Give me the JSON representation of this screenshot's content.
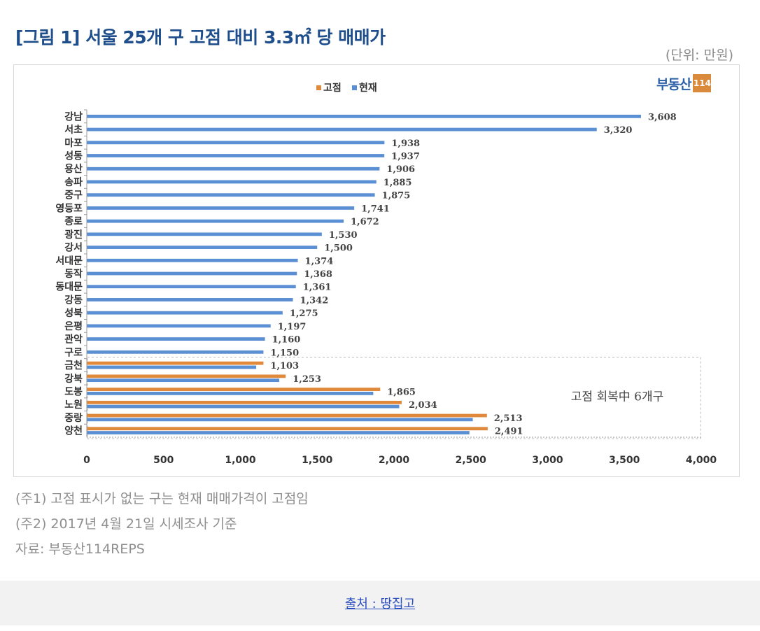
{
  "page": {
    "title": "[그림 1] 서울 25개 구 고점 대비 3.3㎡ 당 매매가",
    "unit": "(단위: 만원)",
    "logo": {
      "text": "부동산",
      "box": "114"
    },
    "notes": [
      "(주1) 고점 표시가 없는 구는 현재 매매가격이 고점임",
      "(주2) 2017년 4월 21일 시세조사 기준",
      "자료: 부동산114REPS"
    ],
    "source_link": "출처 : 땅집고"
  },
  "colors": {
    "peak": "#e0893a",
    "current": "#5b8fd4",
    "axis": "#999999",
    "text": "#333333"
  },
  "chart_data": {
    "type": "bar",
    "orientation": "horizontal",
    "legend": {
      "position": "top",
      "items": [
        "고점",
        "현재"
      ]
    },
    "xlim": [
      0,
      4000
    ],
    "xticks": [
      0,
      500,
      1000,
      1500,
      2000,
      2500,
      3000,
      3500,
      4000
    ],
    "xtick_labels": [
      "0",
      "500",
      "1,000",
      "1,500",
      "2,000",
      "2,500",
      "3,000",
      "3,500",
      "4,000"
    ],
    "categories": [
      "강남",
      "서초",
      "마포",
      "성동",
      "용산",
      "송파",
      "중구",
      "영등포",
      "종로",
      "광진",
      "강서",
      "서대문",
      "동작",
      "동대문",
      "강동",
      "성북",
      "은평",
      "관악",
      "구로",
      "금천",
      "강북",
      "도봉",
      "노원",
      "중랑",
      "양천"
    ],
    "series": [
      {
        "name": "고점",
        "values": [
          null,
          null,
          null,
          null,
          null,
          null,
          null,
          null,
          null,
          null,
          null,
          null,
          null,
          null,
          null,
          null,
          null,
          null,
          null,
          1150,
          1295,
          1910,
          2050,
          2605,
          2610
        ]
      },
      {
        "name": "현재",
        "values": [
          3608,
          3320,
          1938,
          1937,
          1906,
          1885,
          1875,
          1741,
          1672,
          1530,
          1500,
          1374,
          1368,
          1361,
          1342,
          1275,
          1197,
          1160,
          1150,
          1103,
          1253,
          1865,
          2034,
          2513,
          2491
        ]
      }
    ],
    "value_labels": [
      "3,608",
      "3,320",
      "1,938",
      "1,937",
      "1,906",
      "1,885",
      "1,875",
      "1,741",
      "1,672",
      "1,530",
      "1,500",
      "1,374",
      "1,368",
      "1,361",
      "1,342",
      "1,275",
      "1,197",
      "1,160",
      "1,150",
      "1,103",
      "1,253",
      "1,865",
      "2,034",
      "2,513",
      "2,491"
    ],
    "annotation": "고점 회복中 6개구"
  }
}
